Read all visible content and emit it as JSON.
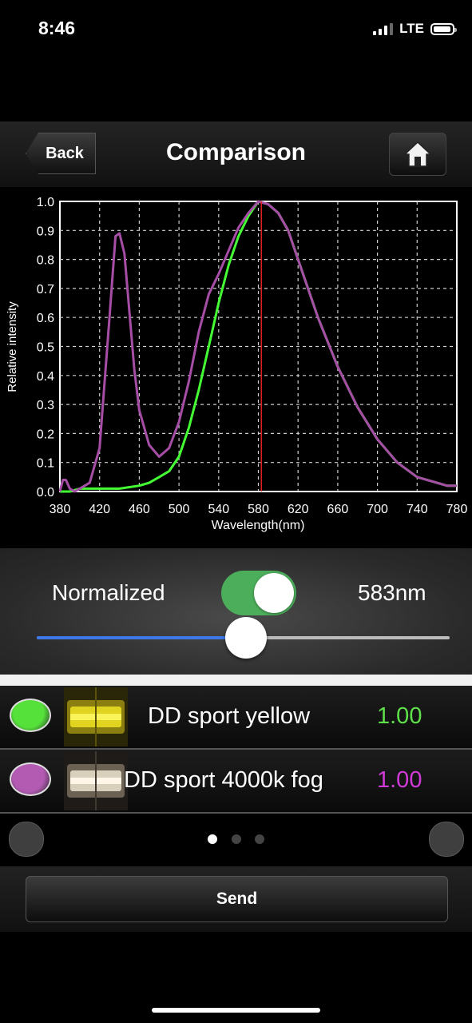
{
  "status_bar": {
    "time": "8:46",
    "network": "LTE"
  },
  "navbar": {
    "back_label": "Back",
    "title": "Comparison",
    "home_icon": "home-icon"
  },
  "chart_data": {
    "type": "line",
    "xlabel": "Wavelength(nm)",
    "ylabel": "Relative intensity",
    "xlim": [
      380,
      780
    ],
    "ylim": [
      0,
      1.0
    ],
    "xticks": [
      380,
      420,
      460,
      500,
      540,
      580,
      620,
      660,
      700,
      740,
      780
    ],
    "yticks": [
      "0.0",
      "0.1",
      "0.2",
      "0.3",
      "0.4",
      "0.5",
      "0.6",
      "0.7",
      "0.8",
      "0.9",
      "1.0"
    ],
    "grid": true,
    "marker_line_x": 583,
    "series": [
      {
        "name": "DD sport yellow",
        "color": "#44ff33",
        "x": [
          380,
          390,
          400,
          420,
          440,
          460,
          470,
          480,
          490,
          500,
          510,
          520,
          530,
          540,
          550,
          560,
          570,
          580,
          590,
          600,
          610,
          620,
          640,
          660,
          680,
          700,
          720,
          740,
          760,
          770,
          780
        ],
        "y": [
          0.0,
          0.0,
          0.01,
          0.01,
          0.01,
          0.02,
          0.03,
          0.05,
          0.07,
          0.12,
          0.22,
          0.35,
          0.5,
          0.65,
          0.78,
          0.88,
          0.95,
          1.0,
          0.99,
          0.96,
          0.9,
          0.8,
          0.6,
          0.43,
          0.29,
          0.18,
          0.1,
          0.05,
          0.03,
          0.02,
          0.02
        ]
      },
      {
        "name": "DD sport 4000k fog",
        "color": "#a64da6",
        "x": [
          380,
          383,
          386,
          390,
          395,
          400,
          410,
          420,
          430,
          436,
          440,
          445,
          450,
          455,
          460,
          470,
          480,
          490,
          500,
          510,
          520,
          530,
          540,
          550,
          560,
          570,
          580,
          590,
          600,
          610,
          620,
          640,
          660,
          680,
          700,
          720,
          740,
          760,
          770,
          780
        ],
        "y": [
          0.0,
          0.04,
          0.04,
          0.01,
          0.0,
          0.01,
          0.03,
          0.15,
          0.6,
          0.88,
          0.89,
          0.82,
          0.62,
          0.42,
          0.28,
          0.16,
          0.12,
          0.15,
          0.24,
          0.38,
          0.55,
          0.68,
          0.75,
          0.83,
          0.91,
          0.96,
          1.0,
          0.99,
          0.96,
          0.9,
          0.8,
          0.6,
          0.43,
          0.29,
          0.18,
          0.1,
          0.05,
          0.03,
          0.02,
          0.02
        ]
      }
    ]
  },
  "controls": {
    "normalized_label": "Normalized",
    "normalized_on": true,
    "wavelength_readout": "583nm",
    "slider_value_nm": 583,
    "slider_range_nm": [
      380,
      780
    ]
  },
  "items": [
    {
      "name": "DD sport yellow",
      "value": "1.00",
      "dot_color": "#55e03a",
      "value_color": "#5fe04a"
    },
    {
      "name": "DD sport 4000k fog",
      "value": "1.00",
      "dot_color": "#b35bb3",
      "value_color": "#d23ad8"
    }
  ],
  "pager": {
    "pages": 3,
    "current": 0
  },
  "send": {
    "label": "Send"
  }
}
